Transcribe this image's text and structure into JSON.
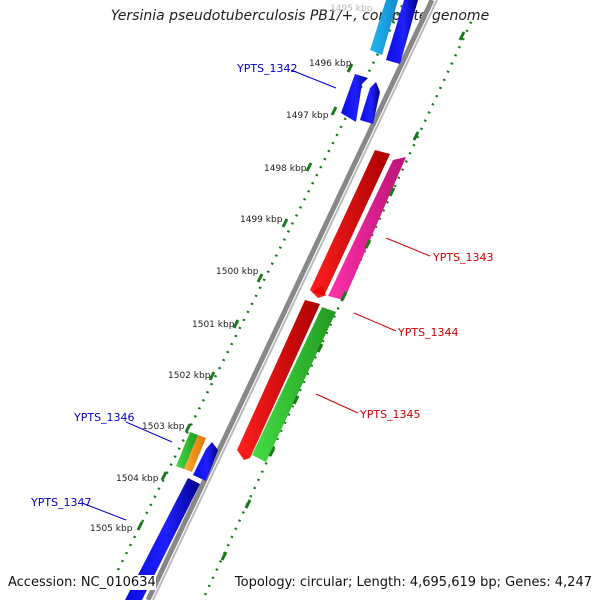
{
  "header": {
    "title": "Yersinia pseudotuberculosis PB1/+, complete genome"
  },
  "footer": {
    "accession": "Accession: NC_010634",
    "topology": "Topology: circular; Length: 4,695,619 bp; Genes: 4,247"
  },
  "ticks": [
    {
      "label": "1495 kbp",
      "faded": true
    },
    {
      "label": "1496 kbp"
    },
    {
      "label": "1497 kbp"
    },
    {
      "label": "1498 kbp"
    },
    {
      "label": "1499 kbp"
    },
    {
      "label": "1500 kbp"
    },
    {
      "label": "1501 kbp"
    },
    {
      "label": "1502 kbp"
    },
    {
      "label": "1503 kbp"
    },
    {
      "label": "1504 kbp"
    },
    {
      "label": "1505 kbp"
    }
  ],
  "gene_labels": [
    {
      "name": "YPTS_1342",
      "color": "#0000cc"
    },
    {
      "name": "YPTS_1343",
      "color": "#cc0000"
    },
    {
      "name": "YPTS_1344",
      "color": "#cc0000"
    },
    {
      "name": "YPTS_1345",
      "color": "#cc0000"
    },
    {
      "name": "YPTS_1346",
      "color": "#0000cc"
    },
    {
      "name": "YPTS_1347",
      "color": "#0000cc"
    }
  ],
  "colors": {
    "blue": "#0a0ae0",
    "cyan": "#22bbee",
    "red": "#ee0000",
    "pink": "#ee2299",
    "green": "#33cc33",
    "orange": "#ff8800",
    "backbone": "#888888",
    "tick": "#1a7a1a"
  }
}
